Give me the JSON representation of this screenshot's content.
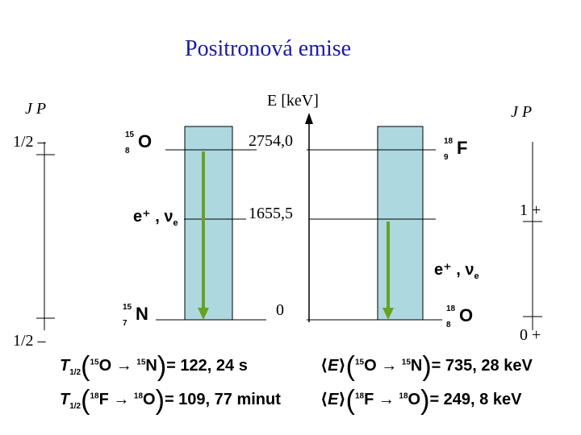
{
  "title": "Positronová emise",
  "energy_axis_label": "E [keV]",
  "left": {
    "jp_label": "J P",
    "top_spin": "1/2 –",
    "bottom_spin": "1/2 –"
  },
  "right": {
    "jp_label": "J P",
    "mid_spin": "1 +",
    "bottom_spin": "0 +"
  },
  "levels": [
    {
      "energy": "2754,0"
    },
    {
      "energy": "1655,5"
    },
    {
      "energy": "0"
    }
  ],
  "nuclides": {
    "O15": {
      "mass": "15",
      "z": "8",
      "symbol": "O"
    },
    "N15": {
      "mass": "15",
      "z": "7",
      "symbol": "N"
    },
    "F18": {
      "mass": "18",
      "z": "9",
      "symbol": "F"
    },
    "O18": {
      "mass": "18",
      "z": "8",
      "symbol": "O"
    }
  },
  "emission_left": "e⁺ , ν",
  "emission_left_sub": "e",
  "emission_right": "e⁺ , ν",
  "emission_right_sub": "e",
  "formulas": {
    "t_o15": {
      "symbol": "T",
      "sub": "1/2",
      "mass1": "15",
      "el1": "O",
      "mass2": "15",
      "el2": "N",
      "value": "= 122, 24 s"
    },
    "t_f18": {
      "symbol": "T",
      "sub": "1/2",
      "mass1": "18",
      "el1": "F",
      "mass2": "18",
      "el2": "O",
      "value": "= 109, 77 minut"
    },
    "e_o15": {
      "mass1": "15",
      "el1": "O",
      "mass2": "15",
      "el2": "N",
      "value": "= 735, 28 keV"
    },
    "e_f18": {
      "mass1": "18",
      "el1": "F",
      "mass2": "18",
      "el2": "O",
      "value": "= 249, 8 keV"
    }
  },
  "colors": {
    "title": "#1a1aa6",
    "box_fill": "#add8e0",
    "arrow": "#6aa121"
  }
}
